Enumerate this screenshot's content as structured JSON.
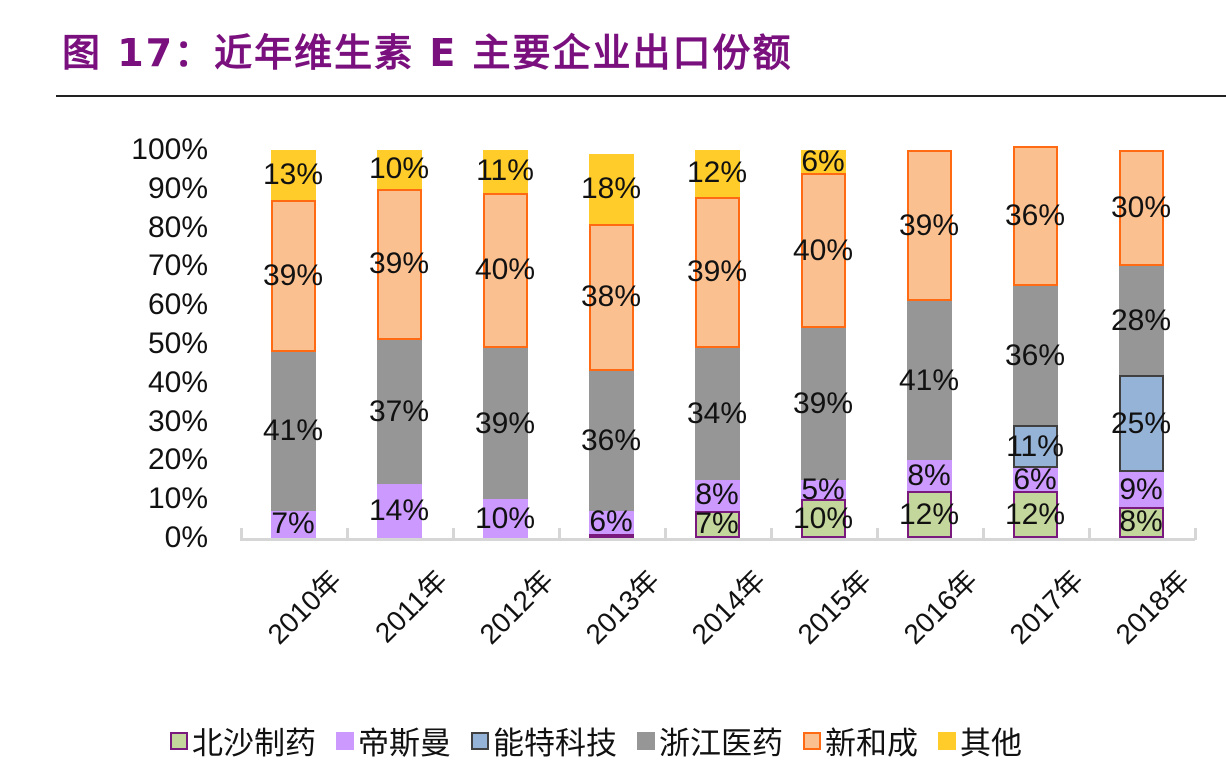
{
  "title": "图 17：近年维生素 E 主要企业出口份额",
  "chart_data": {
    "type": "bar",
    "stacked": true,
    "percent": true,
    "title": "图 17：近年维生素 E 主要企业出口份额",
    "xlabel": "",
    "ylabel": "",
    "ylim": [
      0,
      100
    ],
    "yticks": [
      "0%",
      "10%",
      "20%",
      "30%",
      "40%",
      "50%",
      "60%",
      "70%",
      "80%",
      "90%",
      "100%"
    ],
    "categories": [
      "2010年",
      "2011年",
      "2012年",
      "2013年",
      "2014年",
      "2015年",
      "2016年",
      "2017年",
      "2018年"
    ],
    "series": [
      {
        "name": "北沙制药",
        "fill": "#c3d69b",
        "border": "#7b1a7e",
        "values": [
          0,
          0,
          0,
          1,
          7,
          10,
          12,
          12,
          8
        ],
        "labels": [
          "",
          "",
          "",
          "",
          "7%",
          "10%",
          "12%",
          "12%",
          "8%"
        ]
      },
      {
        "name": "帝斯曼",
        "fill": "#cc99ff",
        "border": "#cc99ff",
        "values": [
          7,
          14,
          10,
          6,
          8,
          5,
          8,
          6,
          9
        ],
        "labels": [
          "7%",
          "14%",
          "10%",
          "6%",
          "8%",
          "5%",
          "8%",
          "6%",
          "9%"
        ]
      },
      {
        "name": "能特科技",
        "fill": "#95b3d7",
        "border": "#404040",
        "values": [
          0,
          0,
          0,
          0,
          0,
          0,
          0,
          11,
          25
        ],
        "labels": [
          "",
          "",
          "",
          "",
          "",
          "",
          "",
          "11%",
          "25%"
        ]
      },
      {
        "name": "浙江医药",
        "fill": "#969696",
        "border": "#969696",
        "values": [
          41,
          37,
          39,
          36,
          34,
          39,
          41,
          36,
          28
        ],
        "labels": [
          "41%",
          "37%",
          "39%",
          "36%",
          "34%",
          "39%",
          "41%",
          "36%",
          "28%"
        ]
      },
      {
        "name": "新和成",
        "fill": "#fac090",
        "border": "#ff6a13",
        "values": [
          39,
          39,
          40,
          38,
          39,
          40,
          39,
          36,
          30
        ],
        "labels": [
          "39%",
          "39%",
          "40%",
          "38%",
          "39%",
          "40%",
          "39%",
          "36%",
          "30%"
        ]
      },
      {
        "name": "其他",
        "fill": "#ffcc29",
        "border": "#ffcc29",
        "values": [
          13,
          10,
          11,
          18,
          12,
          6,
          0,
          0,
          0
        ],
        "labels": [
          "13%",
          "10%",
          "11%",
          "18%",
          "12%",
          "6%",
          "",
          "",
          ""
        ]
      }
    ],
    "legend_position": "bottom",
    "grid": false
  }
}
